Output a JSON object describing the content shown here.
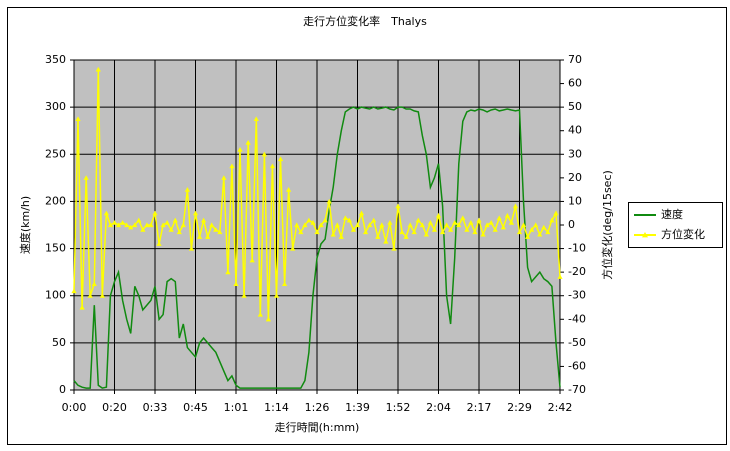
{
  "chart_data": {
    "type": "line",
    "title": "走行方位変化率　Thalys",
    "x_label": "走行時間(h:mm)",
    "y_label": "速度(km/h)",
    "y2_label": "方位変化(deg/15sec)",
    "categories": [
      "0:00",
      null,
      null,
      null,
      null,
      null,
      null,
      null,
      null,
      null,
      "0:20",
      null,
      null,
      null,
      null,
      null,
      null,
      null,
      null,
      null,
      "0:33",
      null,
      null,
      null,
      null,
      null,
      null,
      null,
      null,
      null,
      "0:45",
      null,
      null,
      null,
      null,
      null,
      null,
      null,
      null,
      null,
      "1:01",
      null,
      null,
      null,
      null,
      null,
      null,
      null,
      null,
      null,
      "1:14",
      null,
      null,
      null,
      null,
      null,
      null,
      null,
      null,
      null,
      "1:26",
      null,
      null,
      null,
      null,
      null,
      null,
      null,
      null,
      null,
      "1:39",
      null,
      null,
      null,
      null,
      null,
      null,
      null,
      null,
      null,
      "1:52",
      null,
      null,
      null,
      null,
      null,
      null,
      null,
      null,
      null,
      "2:04",
      null,
      null,
      null,
      null,
      null,
      null,
      null,
      null,
      null,
      "2:17",
      null,
      null,
      null,
      null,
      null,
      null,
      null,
      null,
      null,
      "2:29",
      null,
      null,
      null,
      null,
      null,
      null,
      null,
      null,
      null,
      "2:42"
    ],
    "series": [
      {
        "name": "速度",
        "color": "#108a10",
        "axis": "y",
        "values": [
          10,
          5,
          3,
          2,
          2,
          90,
          5,
          2,
          3,
          100,
          115,
          125,
          95,
          75,
          60,
          110,
          100,
          85,
          90,
          95,
          110,
          75,
          80,
          115,
          118,
          115,
          55,
          70,
          45,
          40,
          35,
          50,
          55,
          50,
          45,
          40,
          30,
          20,
          10,
          15,
          5,
          2,
          2,
          2,
          2,
          2,
          2,
          2,
          2,
          2,
          2,
          2,
          2,
          2,
          2,
          2,
          2,
          10,
          40,
          100,
          140,
          155,
          160,
          190,
          215,
          250,
          275,
          295,
          298,
          300,
          298,
          300,
          299,
          298,
          300,
          298,
          299,
          300,
          298,
          297,
          300,
          300,
          298,
          298,
          296,
          295,
          270,
          250,
          215,
          225,
          240,
          195,
          100,
          70,
          140,
          240,
          285,
          295,
          297,
          296,
          298,
          297,
          295,
          297,
          298,
          296,
          297,
          298,
          297,
          296,
          297,
          200,
          130,
          115,
          120,
          125,
          118,
          115,
          110,
          50,
          3
        ]
      },
      {
        "name": "方位変化",
        "color": "#ffff00",
        "axis": "y2",
        "values": [
          -28,
          45,
          -35,
          20,
          -30,
          -25,
          66,
          -30,
          5,
          0,
          1,
          0,
          1,
          0,
          -1,
          0,
          2,
          -2,
          0,
          0,
          5,
          -8,
          0,
          1,
          -2,
          2,
          -3,
          0,
          15,
          -10,
          5,
          -5,
          2,
          -5,
          0,
          -2,
          -3,
          20,
          -20,
          25,
          -25,
          32,
          -30,
          35,
          -15,
          45,
          -38,
          30,
          -40,
          25,
          -30,
          28,
          -25,
          15,
          -10,
          0,
          -3,
          0,
          2,
          1,
          -3,
          0,
          2,
          10,
          -4,
          0,
          -5,
          3,
          2,
          -2,
          0,
          5,
          -3,
          0,
          2,
          -5,
          0,
          -7,
          1,
          -10,
          8,
          -3,
          -5,
          0,
          -3,
          2,
          0,
          -4,
          1,
          -2,
          4,
          -3,
          0,
          -2,
          1,
          0,
          3,
          -2,
          1,
          -3,
          2,
          -4,
          0,
          1,
          -2,
          3,
          -1,
          4,
          1,
          8,
          -3,
          0,
          -5,
          -2,
          0,
          -4,
          -1,
          -3,
          2,
          5,
          -22
        ]
      }
    ],
    "ylim": [
      0,
      350
    ],
    "yticks": [
      0,
      50,
      100,
      150,
      200,
      250,
      300,
      350
    ],
    "y2lim": [
      -70,
      70
    ],
    "y2ticks": [
      -70,
      -60,
      -50,
      -40,
      -30,
      -20,
      -10,
      0,
      10,
      20,
      30,
      40,
      50,
      60,
      70
    ],
    "grid": true,
    "legend": "right"
  }
}
